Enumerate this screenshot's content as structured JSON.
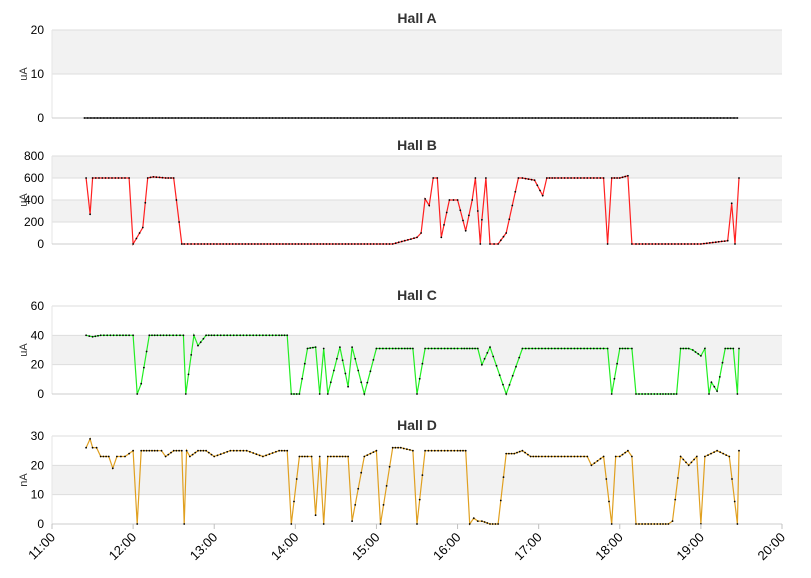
{
  "chart_data": [
    {
      "type": "line",
      "title": "Hall A",
      "xlabel": "",
      "ylabel": "uA",
      "ylim": [
        0,
        20
      ],
      "yticks": [
        "0",
        "10",
        "20"
      ],
      "color": "#000000",
      "series": [
        {
          "x": [
            11.4,
            11.6,
            11.8,
            12.0,
            12.2,
            12.4,
            12.6,
            12.8,
            13.0,
            13.2,
            13.4,
            13.6,
            13.8,
            14.0,
            14.2,
            14.4,
            14.6,
            14.8,
            15.0,
            15.2,
            15.4,
            15.6,
            15.8,
            16.0,
            16.2,
            16.4,
            16.6,
            16.8,
            17.0,
            17.2,
            17.4,
            17.6,
            17.8,
            18.0,
            18.2,
            18.4,
            18.6,
            18.8,
            19.0,
            19.2,
            19.45
          ],
          "y": [
            0,
            0,
            0,
            0,
            0,
            0,
            0,
            0,
            0,
            0,
            0,
            0,
            0,
            0,
            0,
            0,
            0,
            0,
            0,
            0,
            0,
            0,
            0,
            0,
            0,
            0,
            0,
            0,
            0,
            0,
            0,
            0,
            0,
            0,
            0,
            0,
            0,
            0,
            0,
            0,
            0
          ]
        }
      ]
    },
    {
      "type": "line",
      "title": "Hall B",
      "xlabel": "",
      "ylabel": "uA",
      "ylim": [
        0,
        800
      ],
      "yticks": [
        "0",
        "200",
        "400",
        "600",
        "800"
      ],
      "color": "#ff2020",
      "series": [
        {
          "x": [
            11.42,
            11.47,
            11.5,
            11.7,
            11.9,
            11.95,
            12.0,
            12.12,
            12.18,
            12.25,
            12.4,
            12.5,
            12.6,
            12.63,
            12.8,
            13.5,
            14.5,
            15.2,
            15.5,
            15.55,
            15.6,
            15.65,
            15.7,
            15.75,
            15.8,
            15.9,
            15.95,
            16.0,
            16.1,
            16.18,
            16.22,
            16.28,
            16.3,
            16.35,
            16.4,
            16.45,
            16.5,
            16.6,
            16.75,
            16.8,
            16.95,
            17.05,
            17.1,
            17.2,
            17.4,
            17.6,
            17.8,
            17.85,
            17.9,
            18.0,
            18.1,
            18.15,
            18.2,
            18.6,
            19.0,
            19.33,
            19.38,
            19.42,
            19.47
          ],
          "y": [
            600,
            270,
            600,
            600,
            600,
            600,
            0,
            150,
            600,
            610,
            600,
            600,
            0,
            0,
            0,
            0,
            0,
            0,
            60,
            100,
            410,
            350,
            600,
            600,
            60,
            400,
            400,
            400,
            120,
            400,
            600,
            0,
            220,
            600,
            0,
            0,
            0,
            100,
            600,
            600,
            580,
            440,
            600,
            600,
            600,
            600,
            600,
            0,
            600,
            600,
            620,
            0,
            0,
            0,
            0,
            30,
            370,
            0,
            600
          ]
        }
      ]
    },
    {
      "type": "line",
      "title": "Hall C",
      "xlabel": "",
      "ylabel": "uA",
      "ylim": [
        0,
        60
      ],
      "yticks": [
        "0",
        "20",
        "40",
        "60"
      ],
      "color": "#22ee22",
      "series": [
        {
          "x": [
            11.42,
            11.5,
            11.6,
            11.8,
            11.95,
            12.0,
            12.05,
            12.1,
            12.2,
            12.3,
            12.45,
            12.62,
            12.65,
            12.75,
            12.8,
            12.9,
            13.0,
            13.2,
            13.4,
            13.6,
            13.8,
            13.9,
            13.95,
            14.05,
            14.15,
            14.25,
            14.3,
            14.35,
            14.4,
            14.55,
            14.65,
            14.7,
            14.85,
            15.0,
            15.2,
            15.35,
            15.45,
            15.5,
            15.6,
            15.8,
            16.0,
            16.05,
            16.15,
            16.25,
            16.3,
            16.4,
            16.6,
            16.8,
            17.0,
            17.2,
            17.4,
            17.6,
            17.8,
            17.85,
            17.9,
            18.0,
            18.1,
            18.15,
            18.2,
            18.5,
            18.6,
            18.7,
            18.75,
            18.85,
            18.9,
            19.0,
            19.05,
            19.1,
            19.13,
            19.2,
            19.3,
            19.4,
            19.45,
            19.47
          ],
          "y": [
            40,
            39,
            40,
            40,
            40,
            40,
            0,
            7,
            40,
            40,
            40,
            40,
            0,
            40,
            33,
            40,
            40,
            40,
            40,
            40,
            40,
            40,
            0,
            0,
            31,
            32,
            0,
            31,
            0,
            32,
            5,
            32,
            0,
            31,
            31,
            31,
            31,
            0,
            31,
            31,
            31,
            31,
            31,
            31,
            20,
            32,
            0,
            31,
            31,
            31,
            31,
            31,
            31,
            31,
            0,
            31,
            31,
            31,
            0,
            0,
            0,
            0,
            31,
            31,
            30,
            26,
            31,
            0,
            8,
            2,
            31,
            31,
            0,
            31
          ]
        }
      ]
    },
    {
      "type": "line",
      "title": "Hall D",
      "xlabel": "",
      "ylabel": "nA",
      "ylim": [
        0,
        30
      ],
      "yticks": [
        "0",
        "10",
        "20",
        "30"
      ],
      "xticks": [
        "11:00",
        "12:00",
        "13:00",
        "14:00",
        "15:00",
        "16:00",
        "17:00",
        "18:00",
        "19:00",
        "20:00"
      ],
      "color": "#e0a020",
      "series": [
        {
          "x": [
            11.42,
            11.47,
            11.5,
            11.55,
            11.6,
            11.7,
            11.75,
            11.8,
            11.85,
            11.9,
            11.95,
            12.0,
            12.05,
            12.1,
            12.2,
            12.3,
            12.35,
            12.4,
            12.5,
            12.6,
            12.63,
            12.66,
            12.7,
            12.8,
            12.9,
            13.0,
            13.2,
            13.4,
            13.6,
            13.8,
            13.9,
            13.95,
            14.05,
            14.15,
            14.2,
            14.25,
            14.3,
            14.35,
            14.4,
            14.55,
            14.65,
            14.7,
            14.85,
            15.0,
            15.05,
            15.2,
            15.3,
            15.45,
            15.5,
            15.6,
            15.8,
            16.0,
            16.1,
            16.15,
            16.2,
            16.25,
            16.3,
            16.4,
            16.5,
            16.6,
            16.7,
            16.8,
            16.9,
            17.0,
            17.2,
            17.4,
            17.6,
            17.65,
            17.8,
            17.9,
            17.95,
            18.0,
            18.1,
            18.15,
            18.2,
            18.5,
            18.6,
            18.65,
            18.75,
            18.85,
            18.95,
            19.0,
            19.05,
            19.2,
            19.35,
            19.45,
            19.47
          ],
          "y": [
            26,
            29,
            26,
            26,
            23,
            23,
            19,
            23,
            23,
            23,
            24,
            25,
            0,
            25,
            25,
            25,
            25,
            23,
            25,
            25,
            0,
            25,
            23,
            25,
            25,
            23,
            25,
            25,
            23,
            25,
            25,
            0,
            23,
            23,
            23,
            3,
            23,
            0,
            23,
            23,
            23,
            1,
            23,
            25,
            0,
            26,
            26,
            25,
            0,
            25,
            25,
            25,
            25,
            0,
            2,
            1,
            1,
            0,
            0,
            24,
            24,
            25,
            23,
            23,
            23,
            23,
            23,
            20,
            23,
            0,
            23,
            23,
            25,
            23,
            0,
            0,
            0,
            1,
            23,
            20,
            23,
            0,
            23,
            25,
            23,
            0,
            25
          ]
        }
      ]
    }
  ]
}
